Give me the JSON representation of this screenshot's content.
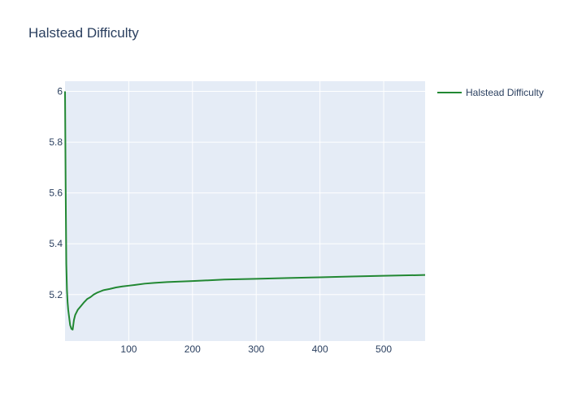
{
  "chart_data": {
    "type": "line",
    "title": "Halstead Difficulty",
    "xlabel": "",
    "ylabel": "",
    "xlim": [
      0,
      565
    ],
    "ylim": [
      5.017,
      6.04
    ],
    "x_ticks": [
      100,
      200,
      300,
      400,
      500
    ],
    "y_ticks": [
      5.2,
      5.4,
      5.6,
      5.8,
      6
    ],
    "grid": true,
    "legend_position": "top-right",
    "series": [
      {
        "name": "Halstead Difficulty",
        "color": "#228833",
        "x": [
          0,
          1,
          2,
          3,
          4,
          5,
          6,
          8,
          10,
          12,
          14,
          16,
          18,
          20,
          25,
          30,
          35,
          40,
          45,
          50,
          55,
          60,
          70,
          80,
          90,
          100,
          110,
          125,
          140,
          160,
          180,
          200,
          225,
          250,
          300,
          350,
          400,
          450,
          500,
          565
        ],
        "y": [
          6.0,
          5.62,
          5.32,
          5.22,
          5.17,
          5.14,
          5.12,
          5.08,
          5.065,
          5.062,
          5.1,
          5.12,
          5.13,
          5.14,
          5.155,
          5.17,
          5.183,
          5.19,
          5.2,
          5.207,
          5.212,
          5.217,
          5.222,
          5.228,
          5.232,
          5.235,
          5.238,
          5.243,
          5.246,
          5.249,
          5.251,
          5.253,
          5.256,
          5.259,
          5.262,
          5.265,
          5.268,
          5.271,
          5.274,
          5.277
        ]
      }
    ]
  }
}
